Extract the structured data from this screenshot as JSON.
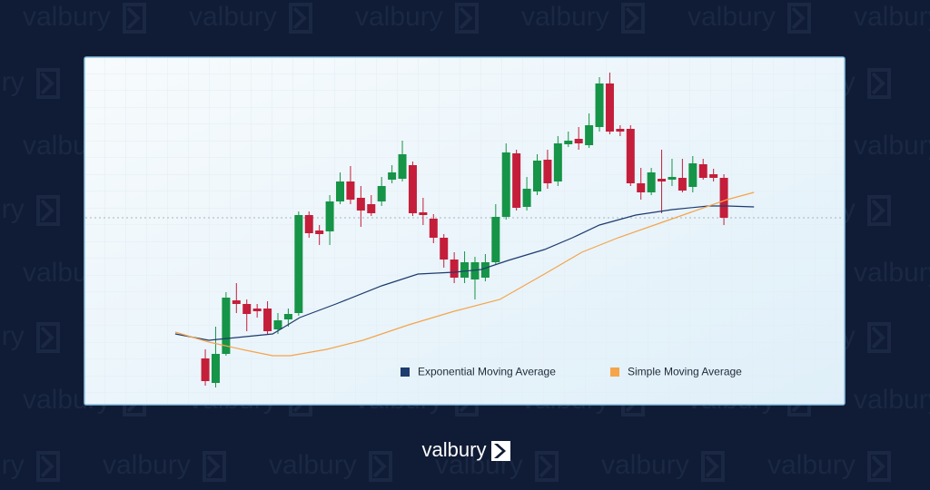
{
  "brand": "valbury",
  "chart_data": {
    "type": "candlestick",
    "xlim": [
      -10.65,
      62.64
    ],
    "ylim": [
      0,
      380
    ],
    "up_color": "#169447",
    "down_color": "#c41e3a",
    "reference_y": 210,
    "x": [
      1,
      2,
      3,
      4,
      5,
      6,
      7,
      8,
      9,
      10,
      11,
      12,
      13,
      14,
      15,
      16,
      17,
      18,
      19,
      20,
      21,
      22,
      23,
      24,
      25,
      26,
      27,
      28,
      29,
      30,
      31,
      32,
      33,
      34,
      35,
      36,
      37,
      38,
      39,
      40,
      41,
      42,
      43,
      44,
      45,
      46,
      47,
      48,
      49,
      50,
      51
    ],
    "open": [
      55,
      28,
      60,
      119,
      115,
      110,
      110,
      87,
      98,
      105,
      213,
      196,
      195,
      228,
      250,
      232,
      225,
      228,
      252,
      253,
      268,
      216,
      209,
      188,
      164,
      144,
      142,
      144,
      161,
      211,
      281,
      222,
      239,
      274,
      250,
      291,
      297,
      290,
      310,
      358,
      308,
      308,
      248,
      238,
      253,
      252,
      254,
      244,
      269,
      258,
      254
    ],
    "high": [
      65,
      90,
      128,
      138,
      120,
      115,
      118,
      105,
      110,
      217,
      217,
      202,
      235,
      260,
      267,
      245,
      235,
      255,
      268,
      295,
      272,
      232,
      214,
      192,
      172,
      173,
      167,
      170,
      225,
      292,
      285,
      255,
      280,
      285,
      300,
      305,
      310,
      325,
      365,
      370,
      312,
      312,
      265,
      265,
      285,
      275,
      275,
      278,
      275,
      264,
      258
    ],
    "low": [
      25,
      23,
      58,
      105,
      85,
      100,
      82,
      82,
      90,
      102,
      188,
      180,
      180,
      225,
      225,
      200,
      212,
      223,
      248,
      250,
      212,
      202,
      182,
      155,
      138,
      138,
      120,
      140,
      158,
      208,
      218,
      218,
      235,
      242,
      245,
      288,
      285,
      287,
      305,
      302,
      300,
      245,
      230,
      235,
      215,
      245,
      238,
      238,
      252,
      250,
      202
    ],
    "close": [
      30,
      60,
      122,
      115,
      104,
      107,
      85,
      97,
      104,
      213,
      193,
      192,
      228,
      250,
      230,
      218,
      215,
      245,
      260,
      280,
      215,
      213,
      188,
      164,
      144,
      161,
      161,
      161,
      211,
      282,
      221,
      242,
      273,
      248,
      292,
      295,
      292,
      312,
      358,
      305,
      305,
      248,
      238,
      260,
      250,
      255,
      240,
      270,
      254,
      254,
      210
    ],
    "series": [
      {
        "name": "Exponential Moving Average",
        "color": "#1d3b6f",
        "x": [
          -1.9,
          1.35,
          4.0,
          7.5,
          10.1,
          13.6,
          18.0,
          21.5,
          25.0,
          27.6,
          30.2,
          33.7,
          36.4,
          39.0,
          42.5,
          46.0,
          49.5,
          51.3,
          53.9
        ],
        "values": [
          82,
          75,
          78,
          82,
          100,
          115,
          135,
          148,
          150,
          153,
          163,
          175,
          188,
          202,
          213,
          219,
          223,
          223,
          222
        ]
      },
      {
        "name": "Simple Moving Average",
        "color": "#f5a44a",
        "x": [
          -1.9,
          1.35,
          4.9,
          7.5,
          9.2,
          12.7,
          16.2,
          20.6,
          25.0,
          29.4,
          33.7,
          37.3,
          40.8,
          44.3,
          47.8,
          51.3,
          53.9
        ],
        "values": [
          84,
          73,
          64,
          58,
          58,
          65,
          75,
          92,
          107,
          120,
          148,
          172,
          188,
          202,
          216,
          230,
          238
        ]
      }
    ]
  }
}
